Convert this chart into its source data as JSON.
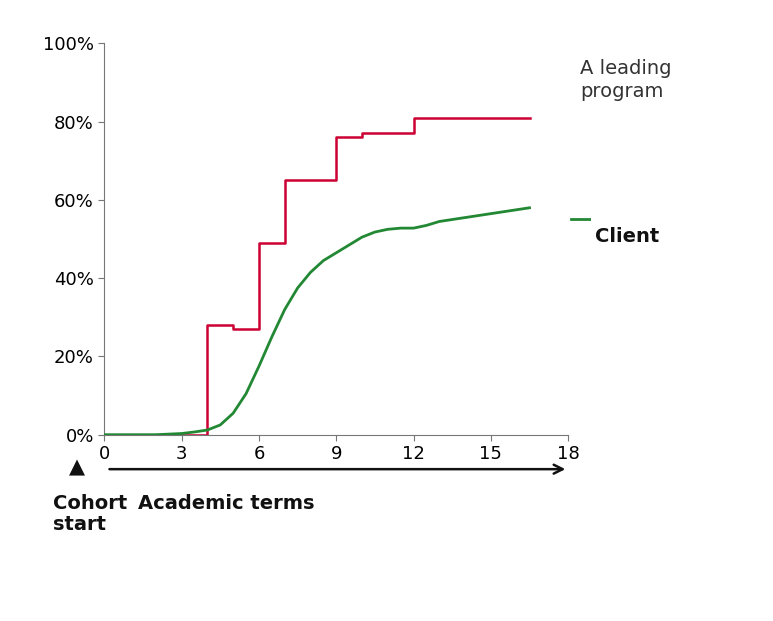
{
  "background_color": "#ffffff",
  "xlim": [
    0,
    18
  ],
  "ylim": [
    0,
    1.0
  ],
  "xticks": [
    0,
    3,
    6,
    9,
    12,
    15,
    18
  ],
  "yticks": [
    0.0,
    0.2,
    0.4,
    0.6,
    0.8,
    1.0
  ],
  "ytick_labels": [
    "0%",
    "20%",
    "40%",
    "60%",
    "80%",
    "100%"
  ],
  "legend_label_red": "A leading\nprogram",
  "legend_label_green": "Client",
  "red_color": "#cc0033",
  "green_color": "#228833",
  "red_x": [
    0,
    4,
    4,
    5,
    5,
    6,
    6,
    7,
    7,
    8,
    8,
    9,
    9,
    10,
    10,
    11,
    11,
    12,
    12,
    13,
    13,
    16.5
  ],
  "red_y": [
    0.0,
    0.0,
    0.28,
    0.28,
    0.27,
    0.27,
    0.49,
    0.49,
    0.65,
    0.65,
    0.65,
    0.65,
    0.76,
    0.76,
    0.77,
    0.77,
    0.77,
    0.77,
    0.81,
    0.81,
    0.81,
    0.81
  ],
  "green_x": [
    0,
    1,
    2,
    3,
    3.5,
    4,
    4.5,
    5,
    5.5,
    6,
    6.5,
    7,
    7.5,
    8,
    8.5,
    9,
    9.5,
    10,
    10.5,
    11,
    11.5,
    12,
    12.5,
    13,
    14,
    15,
    16,
    16.5
  ],
  "green_y": [
    0,
    0,
    0,
    0.003,
    0.007,
    0.012,
    0.025,
    0.055,
    0.105,
    0.175,
    0.25,
    0.32,
    0.375,
    0.415,
    0.445,
    0.465,
    0.485,
    0.505,
    0.518,
    0.525,
    0.528,
    0.528,
    0.535,
    0.545,
    0.555,
    0.565,
    0.575,
    0.58
  ],
  "cohort_label_line1": "Cohort",
  "cohort_label_line2": "start",
  "xaxis_label": "Academic terms",
  "spine_color": "#777777",
  "tick_fontsize": 13,
  "legend_fontsize": 14,
  "label_fontsize": 14
}
